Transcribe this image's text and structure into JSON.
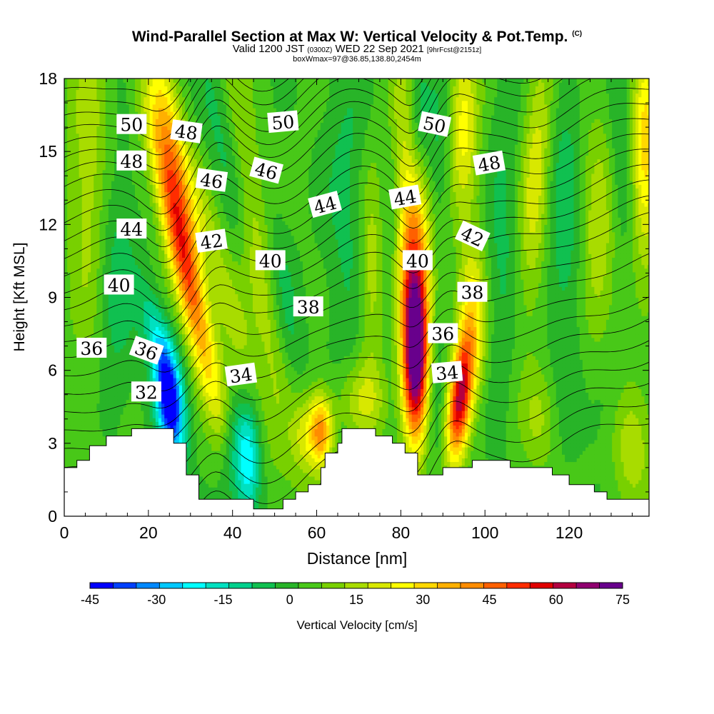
{
  "header": {
    "title": "Wind-Parallel Section at Max W: Vertical Velocity & Pot.Temp.",
    "title_mark": "(C)",
    "subtitle_a": "Valid 1200 JST",
    "subtitle_b": "(0300Z)",
    "subtitle_c": "WED 22 Sep 2021",
    "subtitle_d": "[9hrFcst@2151z]",
    "subtitle_line2": "boxWmax=97@36.85,138.80,2454m"
  },
  "chart_data": {
    "type": "heatmap",
    "xlabel": "Distance [nm]",
    "ylabel": "Height [Kft MSL]",
    "xlim": [
      0,
      139
    ],
    "ylim": [
      0,
      18
    ],
    "xticks": [
      0,
      20,
      40,
      60,
      80,
      100,
      120
    ],
    "yticks": [
      0,
      3,
      6,
      9,
      12,
      15,
      18
    ],
    "colorbar": {
      "label": "Vertical Velocity [cm/s]",
      "ticks": [
        -45,
        -30,
        -15,
        0,
        15,
        30,
        45,
        60,
        75
      ],
      "colors": [
        "#0000ff",
        "#0040ff",
        "#0088ff",
        "#00c8ff",
        "#00ffff",
        "#00e0c0",
        "#00d08c",
        "#10c050",
        "#28b428",
        "#48c818",
        "#78d000",
        "#a8dc00",
        "#d8e800",
        "#ffff00",
        "#ffd800",
        "#ffb000",
        "#ff8c00",
        "#ff6000",
        "#ff2c00",
        "#e00000",
        "#b40040",
        "#900070",
        "#68008c"
      ]
    },
    "terrain_profile": [
      [
        0,
        2
      ],
      [
        3,
        2
      ],
      [
        3,
        2.3
      ],
      [
        6,
        2.3
      ],
      [
        6,
        2.9
      ],
      [
        10,
        2.9
      ],
      [
        10,
        3.3
      ],
      [
        16,
        3.3
      ],
      [
        16,
        3.6
      ],
      [
        26,
        3.6
      ],
      [
        26,
        3
      ],
      [
        29,
        3
      ],
      [
        29,
        1.7
      ],
      [
        32,
        1.7
      ],
      [
        32,
        0.7
      ],
      [
        45,
        0.7
      ],
      [
        45,
        0.3
      ],
      [
        52,
        0.3
      ],
      [
        52,
        0.7
      ],
      [
        55,
        0.7
      ],
      [
        55,
        1
      ],
      [
        58,
        1
      ],
      [
        58,
        1.3
      ],
      [
        61,
        1.3
      ],
      [
        61,
        2
      ],
      [
        62,
        2
      ],
      [
        62,
        2.6
      ],
      [
        65,
        2.6
      ],
      [
        65,
        3
      ],
      [
        66,
        3
      ],
      [
        66,
        3.6
      ],
      [
        74,
        3.6
      ],
      [
        74,
        3.3
      ],
      [
        78,
        3.3
      ],
      [
        78,
        3
      ],
      [
        81,
        3
      ],
      [
        81,
        2.6
      ],
      [
        84,
        2.6
      ],
      [
        84,
        1.7
      ],
      [
        90,
        1.7
      ],
      [
        90,
        2
      ],
      [
        97,
        2
      ],
      [
        97,
        2.3
      ],
      [
        106,
        2.3
      ],
      [
        106,
        2
      ],
      [
        116,
        2
      ],
      [
        116,
        1.7
      ],
      [
        120,
        1.7
      ],
      [
        120,
        1.3
      ],
      [
        126,
        1.3
      ],
      [
        126,
        1
      ],
      [
        129,
        1
      ],
      [
        129,
        0.7
      ],
      [
        139,
        0.7
      ]
    ],
    "vertical_velocity_features": [
      {
        "x": 29,
        "y": 10,
        "value": 40,
        "spread_x": 2.5,
        "spread_y": 4.2,
        "tilt": -1.3
      },
      {
        "x": 26,
        "y": 14.5,
        "value": 30,
        "spread_x": 2.5,
        "spread_y": 3,
        "tilt": -1.0
      },
      {
        "x": 22.5,
        "y": 7.2,
        "value": -18,
        "spread_x": 2.4,
        "spread_y": 1.6,
        "tilt": -1.4
      },
      {
        "x": 25,
        "y": 4.6,
        "value": -48,
        "spread_x": 2.3,
        "spread_y": 1.6,
        "tilt": -0.6
      },
      {
        "x": 34,
        "y": 13,
        "value": -8,
        "spread_x": 3,
        "spread_y": 5,
        "tilt": -1.5
      },
      {
        "x": 36,
        "y": 11,
        "value": 18,
        "spread_x": 3,
        "spread_y": 5,
        "tilt": -1.5
      },
      {
        "x": 45,
        "y": 12,
        "value": 16,
        "spread_x": 3,
        "spread_y": 6,
        "tilt": -0.9
      },
      {
        "x": 39,
        "y": 15,
        "value": -12,
        "spread_x": 3,
        "spread_y": 3,
        "tilt": -1.0
      },
      {
        "x": 43.5,
        "y": 2.2,
        "value": -28,
        "spread_x": 2.2,
        "spread_y": 1.7,
        "tilt": 0
      },
      {
        "x": 39.5,
        "y": 2.5,
        "value": -10,
        "spread_x": 1.8,
        "spread_y": 1.5,
        "tilt": 0
      },
      {
        "x": 61,
        "y": 3.5,
        "value": 38,
        "spread_x": 2,
        "spread_y": 1.1,
        "tilt": 0
      },
      {
        "x": 57,
        "y": 3.4,
        "value": 14,
        "spread_x": 2,
        "spread_y": 1.2,
        "tilt": 0
      },
      {
        "x": 71,
        "y": 4.8,
        "value": 14,
        "spread_x": 4,
        "spread_y": 1.1,
        "tilt": 0
      },
      {
        "x": 83.5,
        "y": 6.5,
        "value": 75,
        "spread_x": 2.2,
        "spread_y": 2.4,
        "tilt": 0
      },
      {
        "x": 83,
        "y": 10.5,
        "value": 30,
        "spread_x": 2.8,
        "spread_y": 2.5,
        "tilt": 0
      },
      {
        "x": 81,
        "y": 15,
        "value": 18,
        "spread_x": 3,
        "spread_y": 3.5,
        "tilt": -0.3
      },
      {
        "x": 94,
        "y": 4.8,
        "value": 55,
        "spread_x": 1.9,
        "spread_y": 1.8,
        "tilt": 0.5
      },
      {
        "x": 97,
        "y": 8,
        "value": 24,
        "spread_x": 2.5,
        "spread_y": 2.4,
        "tilt": 0
      },
      {
        "x": 88,
        "y": 5,
        "value": -10,
        "spread_x": 1.8,
        "spread_y": 2,
        "tilt": 0
      },
      {
        "x": 84,
        "y": 16.5,
        "value": -14,
        "spread_x": 2,
        "spread_y": 2,
        "tilt": 0
      },
      {
        "x": 89,
        "y": 15,
        "value": -8,
        "spread_x": 2,
        "spread_y": 2.5,
        "tilt": 0
      },
      {
        "x": 95,
        "y": 16,
        "value": 22,
        "spread_x": 2.5,
        "spread_y": 2.5,
        "tilt": 0
      },
      {
        "x": 104,
        "y": 11,
        "value": -8,
        "spread_x": 3,
        "spread_y": 5,
        "tilt": 0.2
      },
      {
        "x": 112,
        "y": 14,
        "value": 18,
        "spread_x": 2.5,
        "spread_y": 4,
        "tilt": 0.3
      },
      {
        "x": 119,
        "y": 12,
        "value": -10,
        "spread_x": 3,
        "spread_y": 5,
        "tilt": 0
      },
      {
        "x": 127,
        "y": 11,
        "value": 14,
        "spread_x": 3,
        "spread_y": 4,
        "tilt": 0
      },
      {
        "x": 133,
        "y": 15,
        "value": -10,
        "spread_x": 2.5,
        "spread_y": 3,
        "tilt": 0
      },
      {
        "x": 138,
        "y": 15,
        "value": 30,
        "spread_x": 2.5,
        "spread_y": 3,
        "tilt": 0
      },
      {
        "x": 135,
        "y": 3,
        "value": 14,
        "spread_x": 3.5,
        "spread_y": 1.8,
        "tilt": 0
      },
      {
        "x": 6,
        "y": 14,
        "value": 14,
        "spread_x": 3.5,
        "spread_y": 5,
        "tilt": 0
      },
      {
        "x": 12,
        "y": 10,
        "value": -10,
        "spread_x": 3.5,
        "spread_y": 4,
        "tilt": 0
      },
      {
        "x": 52,
        "y": 9,
        "value": -10,
        "spread_x": 2.5,
        "spread_y": 3,
        "tilt": -0.8
      },
      {
        "x": 67,
        "y": 13,
        "value": -8,
        "spread_x": 3.5,
        "spread_y": 5,
        "tilt": 0
      },
      {
        "x": 73,
        "y": 10,
        "value": 14,
        "spread_x": 2,
        "spread_y": 3,
        "tilt": 0
      },
      {
        "x": 78,
        "y": 13,
        "value": -8,
        "spread_x": 2,
        "spread_y": 4,
        "tilt": 0
      },
      {
        "x": 128,
        "y": 5,
        "value": -8,
        "spread_x": 3,
        "spread_y": 2,
        "tilt": 0
      },
      {
        "x": 113,
        "y": 4,
        "value": 10,
        "spread_x": 3,
        "spread_y": 1.5,
        "tilt": 0
      }
    ],
    "theta_contour_labels": [
      {
        "text": "50",
        "x": 16,
        "y": 16.1,
        "angle": 0
      },
      {
        "text": "48",
        "x": 29,
        "y": 15.8,
        "angle": 8
      },
      {
        "text": "50",
        "x": 52,
        "y": 16.2,
        "angle": -5
      },
      {
        "text": "50",
        "x": 88,
        "y": 16.1,
        "angle": 12
      },
      {
        "text": "48",
        "x": 16,
        "y": 14.6,
        "angle": 0
      },
      {
        "text": "46",
        "x": 35,
        "y": 13.8,
        "angle": 8
      },
      {
        "text": "46",
        "x": 48,
        "y": 14.2,
        "angle": 15
      },
      {
        "text": "48",
        "x": 101,
        "y": 14.5,
        "angle": -10
      },
      {
        "text": "44",
        "x": 16,
        "y": 11.8,
        "angle": 0
      },
      {
        "text": "44",
        "x": 62,
        "y": 12.8,
        "angle": -15
      },
      {
        "text": "44",
        "x": 81,
        "y": 13.1,
        "angle": -10
      },
      {
        "text": "42",
        "x": 35,
        "y": 11.3,
        "angle": -8
      },
      {
        "text": "42",
        "x": 97,
        "y": 11.5,
        "angle": 25
      },
      {
        "text": "40",
        "x": 13,
        "y": 9.5,
        "angle": 0
      },
      {
        "text": "40",
        "x": 49,
        "y": 10.5,
        "angle": 0
      },
      {
        "text": "40",
        "x": 84,
        "y": 10.5,
        "angle": 0
      },
      {
        "text": "38",
        "x": 58,
        "y": 8.6,
        "angle": 0
      },
      {
        "text": "38",
        "x": 97,
        "y": 9.2,
        "angle": 0
      },
      {
        "text": "36",
        "x": 6.5,
        "y": 6.9,
        "angle": 0
      },
      {
        "text": "36",
        "x": 19.5,
        "y": 6.8,
        "angle": 20
      },
      {
        "text": "36",
        "x": 90,
        "y": 7.5,
        "angle": 0
      },
      {
        "text": "34",
        "x": 42,
        "y": 5.8,
        "angle": -8
      },
      {
        "text": "34",
        "x": 91,
        "y": 5.9,
        "angle": -5
      },
      {
        "text": "32",
        "x": 19.5,
        "y": 5.1,
        "angle": 0
      }
    ]
  }
}
